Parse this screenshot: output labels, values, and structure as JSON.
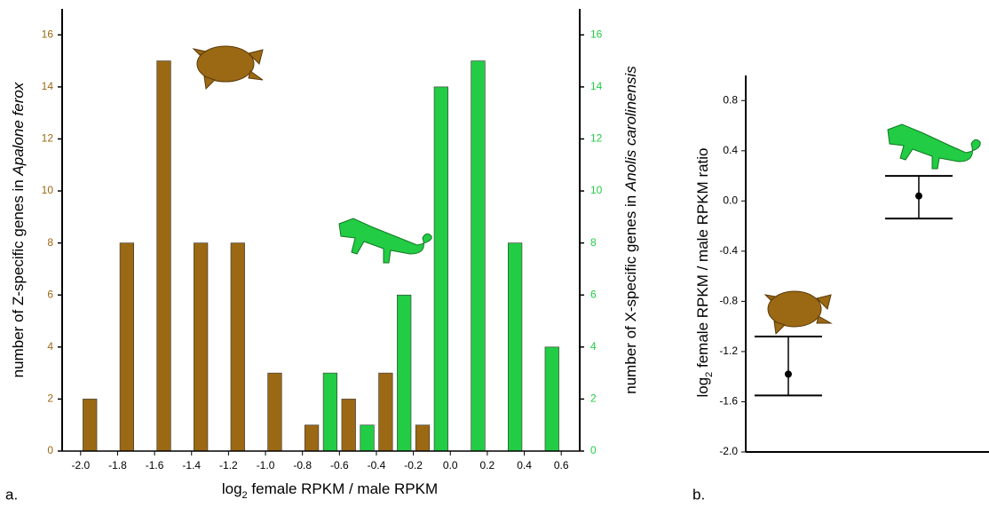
{
  "chart_data": [
    {
      "type": "bar",
      "panel_label": "a.",
      "xlabel_parts": [
        "log",
        "2",
        " female RPKM / male RPKM"
      ],
      "ylabel_parts": [
        "number of Z-specific genes in ",
        "Apalone ferox"
      ],
      "y2label_parts": [
        "number of X-specific genes in ",
        "Anolis carolinensis"
      ],
      "xlim": [
        -2.1,
        0.7
      ],
      "xticks": [
        {
          "value": -2.0,
          "label": "-2.0"
        },
        -1.8,
        -1.6,
        -1.4,
        -1.2,
        {
          "value": -1.0,
          "label": "-1.0"
        },
        -0.8,
        -0.6,
        -0.4,
        -0.2,
        {
          "value": 0.0,
          "label": "0.0"
        },
        0.2,
        0.4,
        0.6
      ],
      "ylim": [
        0,
        17
      ],
      "yticks": [
        0,
        2,
        4,
        6,
        8,
        10,
        12,
        14,
        16
      ],
      "y2lim": [
        0,
        17
      ],
      "y2ticks": [
        0,
        2,
        4,
        6,
        8,
        10,
        12,
        14,
        16
      ],
      "series": [
        {
          "color": "#9b6814",
          "x": [
            -1.95,
            -1.75,
            -1.55,
            -1.35,
            -1.15,
            -0.95,
            -0.75,
            -0.55,
            -0.35,
            -0.15
          ],
          "values": [
            2,
            8,
            15,
            8,
            8,
            3,
            1,
            2,
            3,
            1
          ]
        },
        {
          "color": "#22cc44",
          "axis": "y2",
          "x": [
            -0.65,
            -0.45,
            -0.25,
            -0.05,
            0.15,
            0.35,
            0.55
          ],
          "values": [
            3,
            1,
            6,
            14,
            15,
            8,
            4
          ]
        }
      ]
    },
    {
      "type": "errorbar",
      "panel_label": "b.",
      "ylabel_parts": [
        "log",
        "2",
        " female RPKM / male RPKM ratio"
      ],
      "categories": [
        null,
        null
      ],
      "values": [
        -1.38,
        0.04
      ],
      "lower": [
        -1.55,
        -0.14
      ],
      "upper": [
        -1.08,
        0.2
      ],
      "ylim": [
        -2.0,
        1.0
      ],
      "yticks": [
        {
          "value": -2.0,
          "label": "-2.0"
        },
        -1.6,
        -1.2,
        -0.8,
        -0.4,
        {
          "value": 0.0,
          "label": "0.0"
        },
        0.4,
        0.8
      ]
    }
  ]
}
